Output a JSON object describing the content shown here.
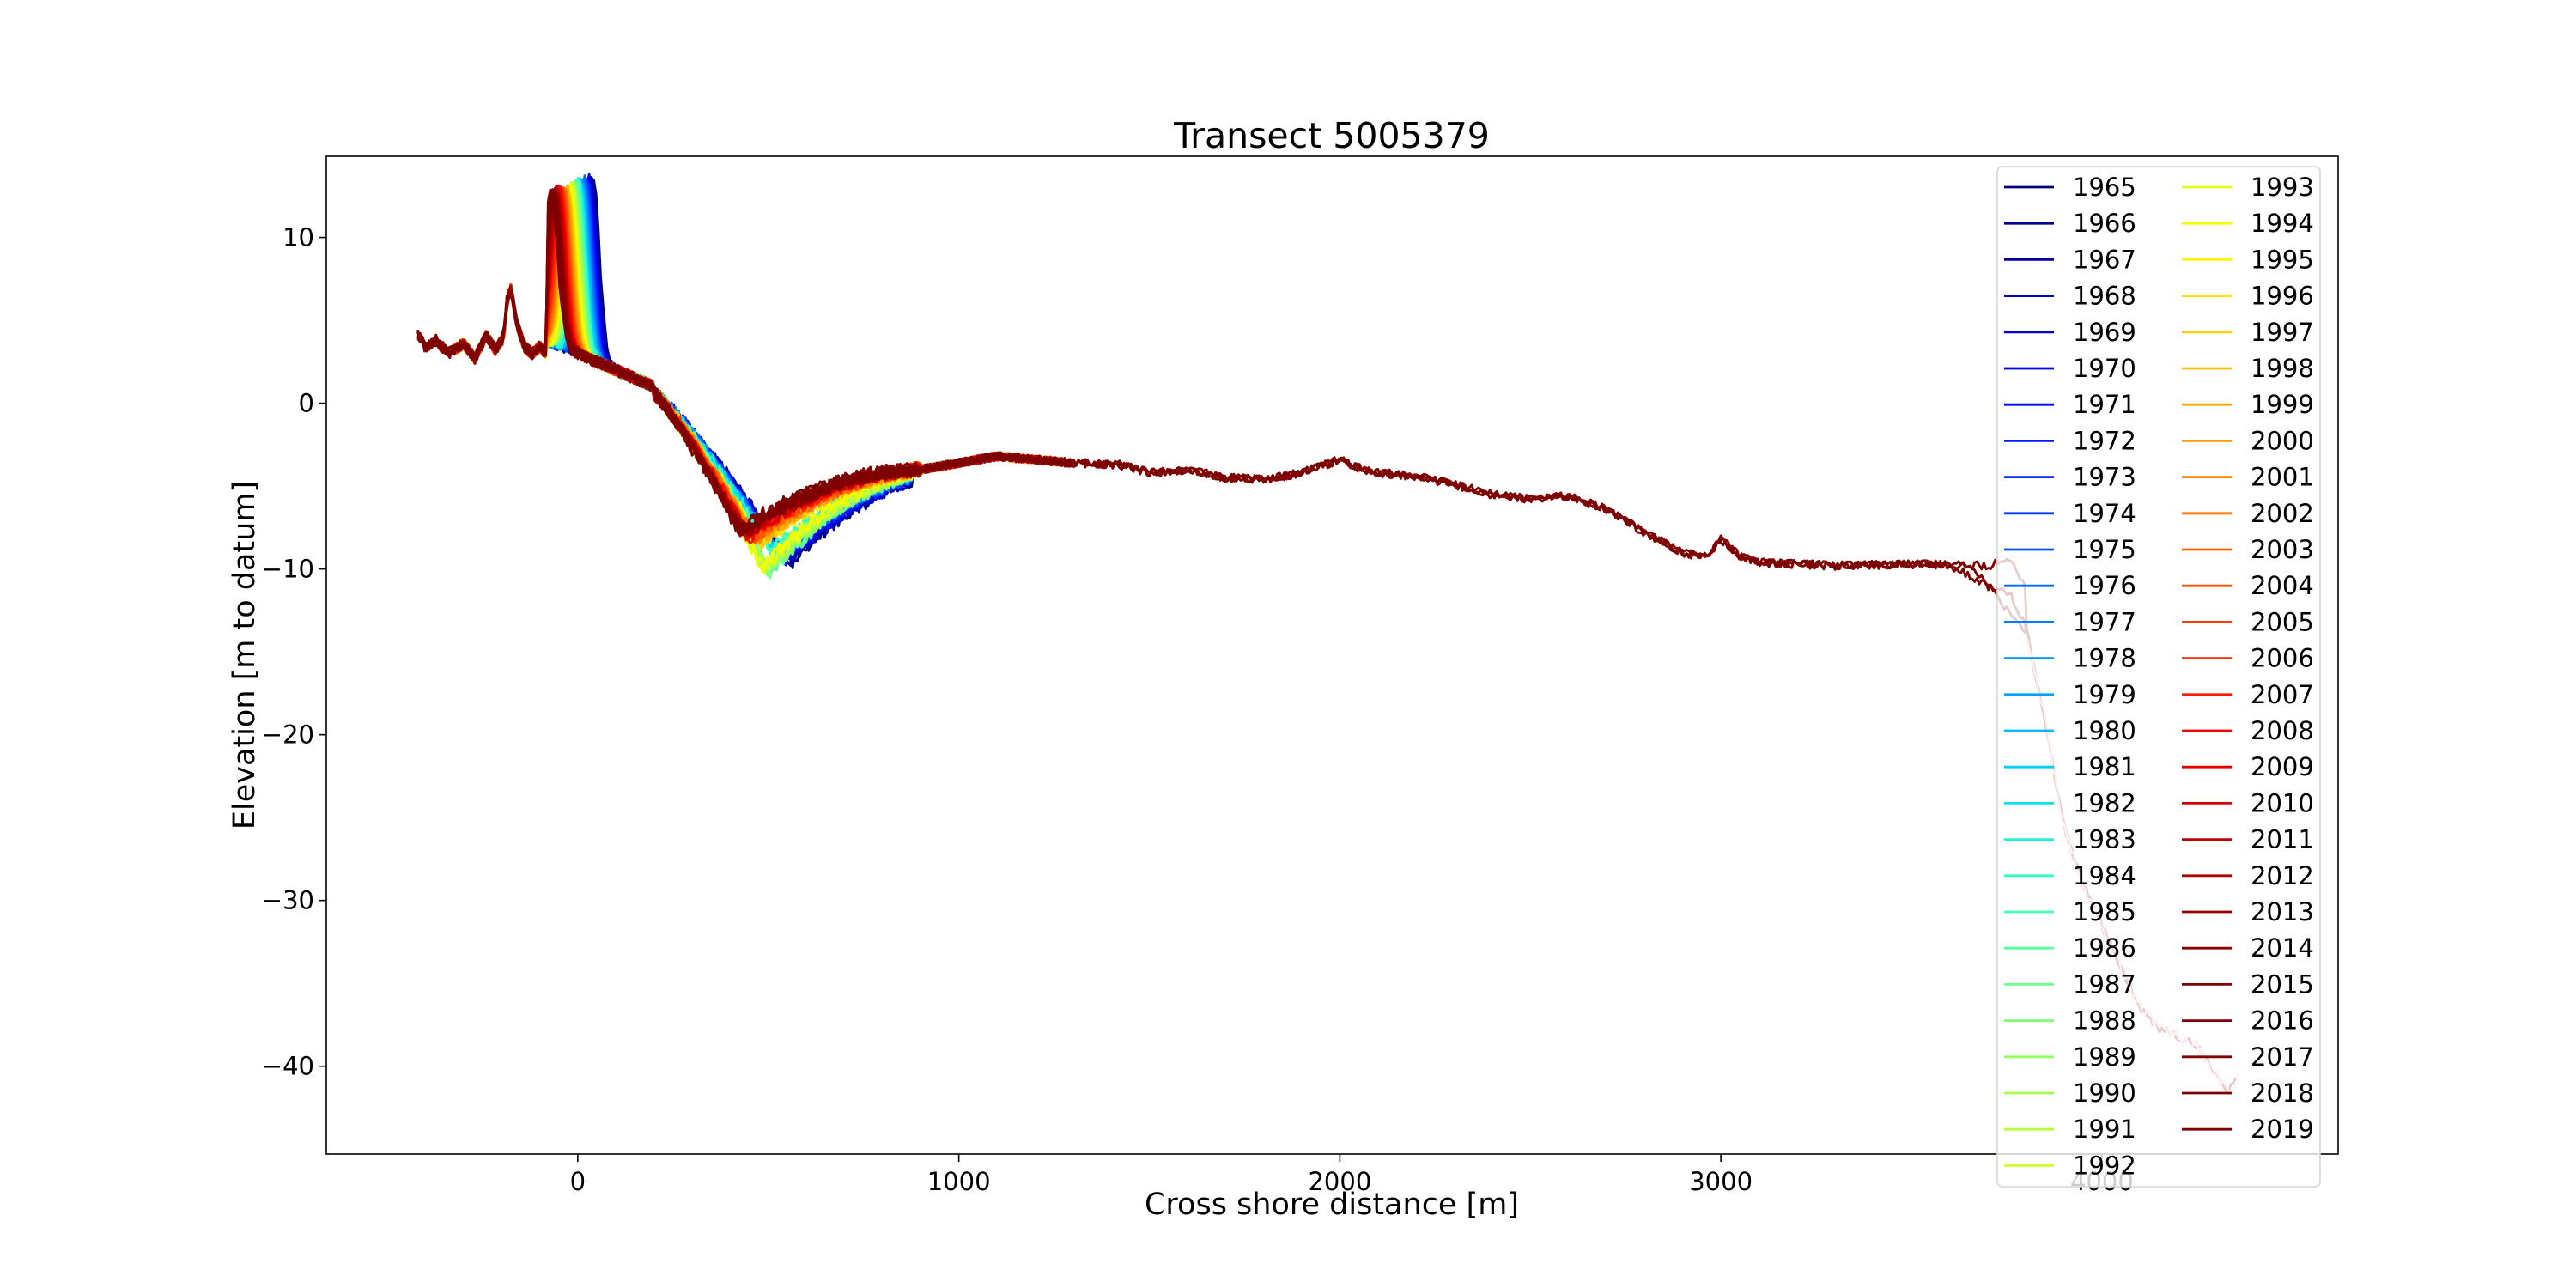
{
  "chart_data": {
    "type": "line",
    "title": "Transect 5005379",
    "xlabel": "Cross shore distance [m]",
    "ylabel": "Elevation [m to datum]",
    "xlim": [
      -660,
      4620
    ],
    "ylim": [
      -45.3,
      14.9
    ],
    "xticks": [
      0,
      1000,
      2000,
      3000,
      4000
    ],
    "xtick_labels": [
      "0",
      "1000",
      "2000",
      "3000",
      "4000"
    ],
    "yticks": [
      10,
      0,
      -10,
      -20,
      -30,
      -40
    ],
    "ytick_labels": [
      "10",
      "0",
      "−10",
      "−20",
      "−30",
      "−40"
    ],
    "grid": false,
    "legend": {
      "position": "upper-right",
      "columns": 2
    },
    "colormap": "jet",
    "series_names": [
      "1965",
      "1966",
      "1967",
      "1968",
      "1969",
      "1970",
      "1971",
      "1972",
      "1973",
      "1974",
      "1975",
      "1976",
      "1977",
      "1978",
      "1979",
      "1980",
      "1981",
      "1982",
      "1983",
      "1984",
      "1985",
      "1986",
      "1987",
      "1988",
      "1989",
      "1990",
      "1991",
      "1992",
      "1993",
      "1994",
      "1995",
      "1996",
      "1997",
      "1998",
      "1999",
      "2000",
      "2001",
      "2002",
      "2003",
      "2004",
      "2005",
      "2006",
      "2007",
      "2008",
      "2009",
      "2010",
      "2011",
      "2012",
      "2013",
      "2014",
      "2015",
      "2016",
      "2017",
      "2018",
      "2019"
    ],
    "series_colors": [
      "#00007f",
      "#00008d",
      "#0000a3",
      "#0000bc",
      "#0000d5",
      "#0000ee",
      "#0004ff",
      "#0018ff",
      "#002cff",
      "#0040ff",
      "#0054ff",
      "#0068ff",
      "#007cff",
      "#0090ff",
      "#00a4ff",
      "#00b8ff",
      "#00ccff",
      "#0ae0ef",
      "#1ef3d8",
      "#31ffc6",
      "#45ffb2",
      "#58ff9f",
      "#6cff8b",
      "#7fff77",
      "#93ff64",
      "#a6ff50",
      "#baff3d",
      "#cdff29",
      "#e0ff16",
      "#f3ff03",
      "#fff400",
      "#ffe200",
      "#ffcf00",
      "#ffbd00",
      "#ffaa00",
      "#ff9800",
      "#ff8500",
      "#ff7300",
      "#ff6000",
      "#ff4e00",
      "#ff3b00",
      "#ff2900",
      "#ff1600",
      "#f60400",
      "#e40000",
      "#d10000",
      "#bf0000",
      "#ad0000",
      "#9a0000",
      "#880000",
      "#7f0000",
      "#7f0000",
      "#7f0000",
      "#7f0000",
      "#7f0000"
    ],
    "series_extents_m": {
      "1965_to_1975": [
        -180,
        1080
      ],
      "1976_to_1995": [
        -180,
        1000
      ],
      "1996_to_2012": [
        -320,
        1280
      ],
      "2013_to_2016": [
        -420,
        1300
      ],
      "2017": [
        -420,
        4080
      ],
      "2018": [
        -420,
        4360
      ],
      "2019": [
        -420,
        3810
      ]
    },
    "profile_features": {
      "dune_crest_max_elevation": 12.1,
      "dune_crest_x": 30,
      "trough_min_elevation": -11.7,
      "trough_x": 520,
      "offshore_plateau_elevation": -4,
      "shelf_break_x": 3800,
      "deep_end_elevation": -42
    }
  }
}
